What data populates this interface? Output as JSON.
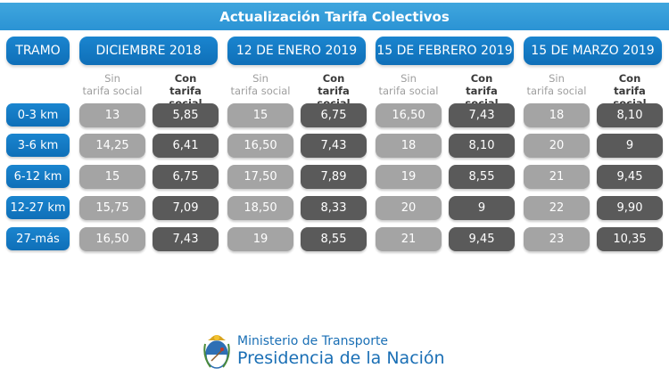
{
  "title": "Actualización Tarifa Colectivos",
  "header": {
    "tramo": "TRAMO",
    "periods": [
      "DICIEMBRE 2018",
      "12 DE ENERO 2019",
      "15 DE FEBRERO 2019",
      "15 DE MARZO 2019"
    ]
  },
  "subheaders": {
    "sin_1": "Sin",
    "sin_2": "tarifa social",
    "con_1": "Con",
    "con_2": "tarifa social"
  },
  "rows": [
    {
      "tramo": "0-3 km",
      "values": [
        "13",
        "5,85",
        "15",
        "6,75",
        "16,50",
        "7,43",
        "18",
        "8,10"
      ]
    },
    {
      "tramo": "3-6 km",
      "values": [
        "14,25",
        "6,41",
        "16,50",
        "7,43",
        "18",
        "8,10",
        "20",
        "9"
      ]
    },
    {
      "tramo": "6-12 km",
      "values": [
        "15",
        "6,75",
        "17,50",
        "7,89",
        "19",
        "8,55",
        "21",
        "9,45"
      ]
    },
    {
      "tramo": "12-27 km",
      "values": [
        "15,75",
        "7,09",
        "18,50",
        "8,33",
        "20",
        "9",
        "22",
        "9,90"
      ]
    },
    {
      "tramo": "27-más",
      "values": [
        "16,50",
        "7,43",
        "19",
        "8,55",
        "21",
        "9,45",
        "23",
        "10,35"
      ]
    }
  ],
  "footer": {
    "line1": "Ministerio de Transporte",
    "line2": "Presidencia de la Nación",
    "icon": "escudo-nacional-icon"
  },
  "colors": {
    "title_bg": "#3fa6de",
    "header_bg": "#1a85cf",
    "sin_cell": "#a4a4a4",
    "con_cell": "#5a5a5a",
    "brand_text": "#1a6fb5"
  }
}
